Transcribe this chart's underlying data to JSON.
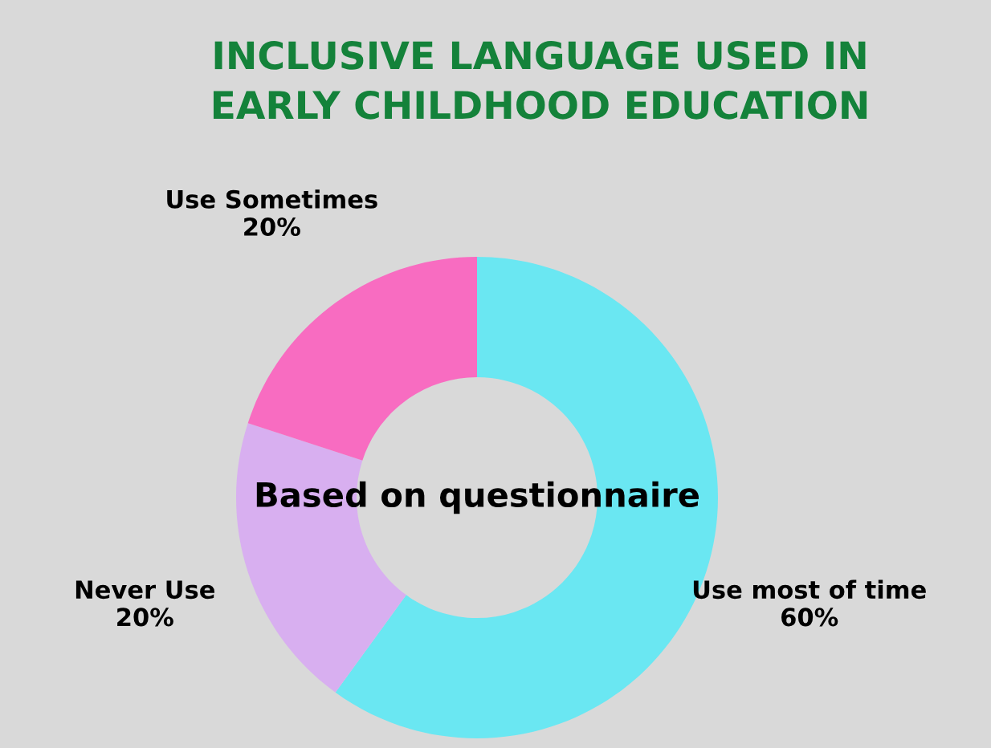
{
  "chart_data": {
    "type": "donut",
    "title": "INCLUSIVE LANGUAGE USED IN\nEARLY CHILDHOOD EDUCATION",
    "categories": [
      "Use most of time",
      "Never Use",
      "Use Sometimes"
    ],
    "values": [
      60,
      20,
      20
    ],
    "value_labels": [
      "60%",
      "20%",
      "20%"
    ],
    "colors": [
      "#6ae7f2",
      "#d8aff0",
      "#f86cc1"
    ],
    "annotations": [
      "Based on questionnaire"
    ]
  }
}
